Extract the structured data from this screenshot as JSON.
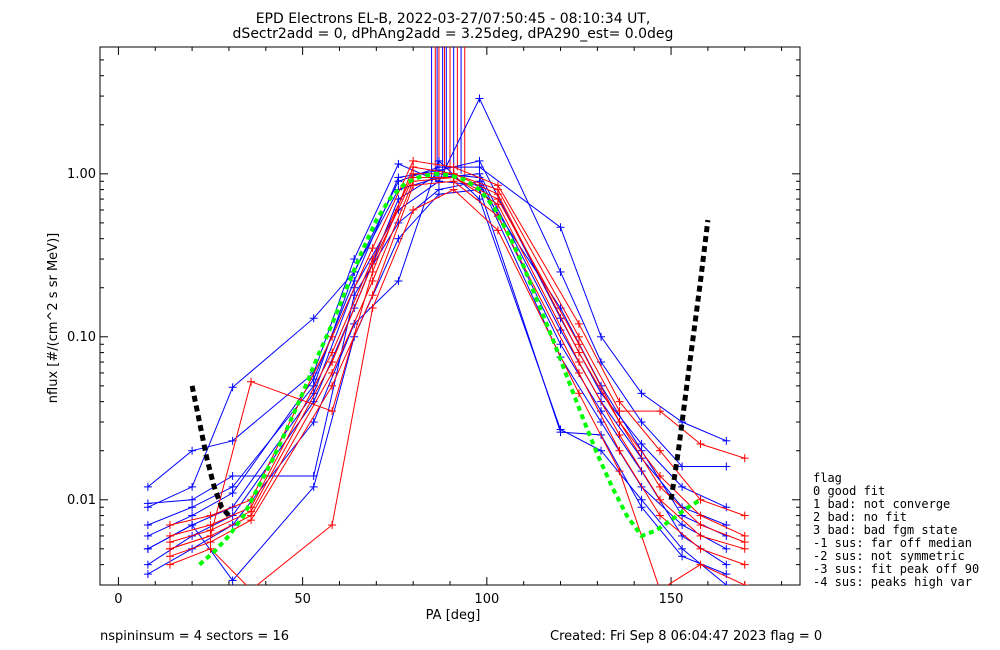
{
  "header": {
    "title_line1": "EPD Electrons EL-B, 2022-03-27/07:50:45 - 08:10:34 UT,",
    "title_line2": "dSectr2add = 0, dPhAng2add = 3.25deg, dPA290_est=    0.0deg"
  },
  "footer": {
    "left": "nspininsum =  4  sectors = 16",
    "right": "Created: Fri Sep  8 06:04:47 2023   flag = 0"
  },
  "legend": {
    "title": "flag",
    "items": [
      " 0 good fit",
      " 1 bad: not converge",
      " 2 bad: no fit",
      " 3 bad: bad fgm state",
      "-1 sus: far off median",
      "-2 sus: not symmetric",
      "-3 sus: fit peak off 90",
      "-4 sus: peaks high var"
    ]
  },
  "colors": {
    "blue": "#0000ff",
    "red": "#ff0000",
    "green": "#00ff00",
    "black": "#000000"
  },
  "chart_data": {
    "type": "line",
    "title": "EPD Electrons EL-B, 2022-03-27/07:50:45 - 08:10:34 UT,",
    "subtitle": "dSectr2add = 0, dPhAng2add = 3.25deg, dPA290_est=    0.0deg",
    "xlabel": "PA [deg]",
    "ylabel": "nflux [#/(cm^2 s sr MeV)]",
    "xlim": [
      -5,
      185
    ],
    "ylim": [
      0.003,
      6
    ],
    "yscale": "log",
    "xticks": [
      0,
      50,
      100,
      150
    ],
    "yticks": [
      0.01,
      0.1,
      1.0
    ],
    "ytick_labels": [
      "0.01",
      "0.10",
      "1.00"
    ],
    "series": [
      {
        "color": "blue",
        "x": [
          8,
          20,
          31,
          53,
          64,
          76,
          87,
          98,
          120,
          131,
          142,
          153,
          165
        ],
        "y": [
          0.005,
          0.007,
          0.009,
          0.045,
          0.2,
          0.6,
          0.9,
          0.85,
          0.15,
          0.05,
          0.02,
          0.008,
          0.006
        ]
      },
      {
        "color": "blue",
        "x": [
          8,
          20,
          31,
          53,
          64,
          76,
          87,
          98,
          120,
          131,
          142,
          153,
          165
        ],
        "y": [
          0.009,
          0.012,
          0.049,
          0.13,
          0.25,
          0.9,
          1.1,
          1.1,
          0.47,
          0.1,
          0.045,
          0.03,
          0.023
        ]
      },
      {
        "color": "blue",
        "x": [
          8,
          20,
          31,
          53,
          64,
          76,
          87,
          98,
          120,
          131,
          142,
          153,
          165
        ],
        "y": [
          0.012,
          0.02,
          0.023,
          0.06,
          0.3,
          1.15,
          0.9,
          2.9,
          0.25,
          0.07,
          0.03,
          0.016,
          0.016
        ]
      },
      {
        "color": "blue",
        "x": [
          8,
          20,
          31,
          53,
          64,
          76,
          87,
          98,
          120,
          131,
          142,
          153,
          165
        ],
        "y": [
          0.004,
          0.006,
          0.008,
          0.04,
          0.15,
          0.7,
          1.0,
          0.95,
          0.09,
          0.035,
          0.015,
          0.006,
          0.004
        ]
      },
      {
        "color": "blue",
        "x": [
          8,
          20,
          31,
          53,
          64,
          76,
          87,
          98,
          120,
          131,
          142,
          153,
          165
        ],
        "y": [
          0.0035,
          0.005,
          0.007,
          0.03,
          0.12,
          0.22,
          1.2,
          0.7,
          0.027,
          0.02,
          0.01,
          0.005,
          0.003
        ]
      },
      {
        "color": "blue",
        "x": [
          8,
          20,
          31,
          53,
          64,
          76,
          87,
          98,
          120,
          131,
          142,
          153,
          165
        ],
        "y": [
          0.007,
          0.009,
          0.012,
          0.05,
          0.25,
          0.8,
          0.95,
          1.0,
          0.11,
          0.04,
          0.018,
          0.009,
          0.007
        ]
      },
      {
        "color": "blue",
        "x": [
          8,
          20,
          31,
          53,
          64,
          76,
          87,
          98,
          120,
          131,
          142,
          153,
          165
        ],
        "y": [
          0.0095,
          0.01,
          0.014,
          0.014,
          0.18,
          0.5,
          0.8,
          0.9,
          0.075,
          0.03,
          0.012,
          0.007,
          0.005
        ]
      },
      {
        "color": "blue",
        "x": [
          8,
          20,
          31,
          53,
          64,
          76,
          87,
          98,
          120,
          131,
          142,
          153,
          165
        ],
        "y": [
          0.006,
          0.008,
          0.011,
          0.055,
          0.22,
          0.95,
          1.05,
          1.2,
          0.13,
          0.045,
          0.022,
          0.012,
          0.009
        ]
      },
      {
        "color": "blue",
        "x": [
          8,
          20,
          31,
          53,
          64,
          76,
          87,
          98,
          120,
          131,
          142,
          153,
          165
        ],
        "y": [
          0.005,
          0.007,
          0.0032,
          0.012,
          0.1,
          0.4,
          0.75,
          0.8,
          0.026,
          0.025,
          0.009,
          0.0045,
          0.0035
        ]
      },
      {
        "color": "red",
        "x": [
          14,
          25,
          36,
          58,
          69,
          80,
          91,
          103,
          125,
          136,
          147,
          158,
          170
        ],
        "y": [
          0.005,
          0.006,
          0.053,
          0.035,
          0.25,
          1.1,
          1.0,
          0.8,
          0.1,
          0.035,
          0.035,
          0.022,
          0.018
        ]
      },
      {
        "color": "red",
        "x": [
          14,
          25,
          36,
          58,
          69,
          80,
          91,
          103,
          125,
          136,
          147,
          158,
          170
        ],
        "y": [
          0.006,
          0.007,
          0.009,
          0.08,
          0.3,
          1.0,
          1.0,
          0.75,
          0.08,
          0.03,
          0.014,
          0.008,
          0.006
        ]
      },
      {
        "color": "red",
        "x": [
          14,
          25,
          36,
          58,
          69,
          80,
          91,
          103,
          125,
          136,
          147,
          158,
          170
        ],
        "y": [
          0.005,
          0.006,
          0.008,
          0.06,
          0.22,
          0.9,
          0.95,
          0.65,
          0.07,
          0.025,
          0.01,
          0.006,
          0.005
        ]
      },
      {
        "color": "red",
        "x": [
          14,
          25,
          36,
          58,
          69,
          80,
          91,
          103,
          125,
          136,
          147,
          158,
          170
        ],
        "y": [
          0.0045,
          0.0055,
          0.0075,
          0.05,
          0.18,
          0.85,
          0.9,
          0.55,
          0.06,
          0.02,
          0.008,
          0.005,
          0.004
        ]
      },
      {
        "color": "red",
        "x": [
          14,
          25,
          36,
          58,
          69,
          80,
          91,
          103,
          125,
          136,
          147,
          158,
          170
        ],
        "y": [
          0.004,
          0.005,
          0.0028,
          0.007,
          0.15,
          0.6,
          0.8,
          0.45,
          0.045,
          0.015,
          0.0028,
          0.004,
          0.003
        ]
      },
      {
        "color": "red",
        "x": [
          14,
          25,
          36,
          58,
          69,
          80,
          91,
          103,
          125,
          136,
          147,
          158,
          170
        ],
        "y": [
          0.007,
          0.008,
          0.01,
          0.1,
          0.35,
          1.2,
          1.1,
          0.85,
          0.12,
          0.04,
          0.02,
          0.01,
          0.008
        ]
      },
      {
        "color": "red",
        "x": [
          14,
          25,
          36,
          58,
          69,
          80,
          91,
          103,
          125,
          136,
          147,
          158,
          170
        ],
        "y": [
          0.0055,
          0.0065,
          0.0085,
          0.07,
          0.28,
          0.95,
          0.95,
          0.7,
          0.09,
          0.03,
          0.012,
          0.007,
          0.0055
        ]
      }
    ],
    "green_fit": {
      "color": "green",
      "x": [
        22,
        26,
        30,
        34,
        38,
        42,
        46,
        50,
        54,
        58,
        62,
        66,
        70,
        74,
        78,
        82,
        86,
        90,
        94,
        98,
        102,
        106,
        110,
        114,
        118,
        122,
        126,
        130,
        134,
        138,
        142,
        146,
        150,
        154,
        158
      ],
      "y": [
        0.004,
        0.0048,
        0.006,
        0.008,
        0.012,
        0.018,
        0.028,
        0.045,
        0.075,
        0.12,
        0.2,
        0.33,
        0.52,
        0.72,
        0.88,
        0.96,
        1.0,
        0.98,
        0.92,
        0.8,
        0.62,
        0.42,
        0.27,
        0.16,
        0.095,
        0.055,
        0.032,
        0.019,
        0.012,
        0.008,
        0.006,
        0.0065,
        0.0075,
        0.0088,
        0.01
      ]
    },
    "black_tails": [
      {
        "color": "black",
        "x": [
          20,
          22,
          24,
          26,
          28,
          30
        ],
        "y": [
          0.05,
          0.03,
          0.018,
          0.012,
          0.009,
          0.008
        ]
      },
      {
        "color": "black",
        "x": [
          150,
          152,
          154,
          156,
          158,
          160
        ],
        "y": [
          0.01,
          0.02,
          0.045,
          0.1,
          0.22,
          0.52
        ]
      }
    ],
    "spikes": {
      "colors": [
        "blue",
        "red",
        "blue",
        "red",
        "blue",
        "red",
        "blue",
        "red",
        "blue",
        "red",
        "blue",
        "red"
      ],
      "x": [
        85,
        86,
        86.5,
        87,
        88,
        88.5,
        89,
        90,
        91,
        92,
        93,
        94
      ],
      "y_bottom": [
        0.9,
        1.0,
        0.95,
        1.05,
        1.0,
        0.95,
        1.1,
        1.0,
        0.9,
        1.05,
        1.0,
        0.95
      ]
    }
  }
}
